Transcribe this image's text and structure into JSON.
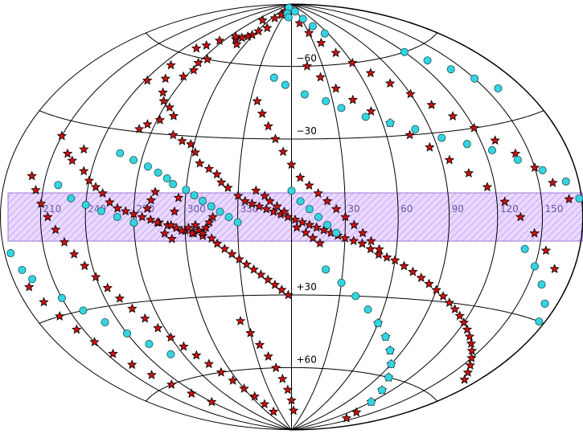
{
  "chart_data": {
    "type": "scatter",
    "projection": "aitoff-hammer all-sky, galactic coordinates",
    "grid": true,
    "lon_center": 0,
    "lat_lines": [
      -60,
      -30,
      30,
      60
    ],
    "lat_labels": [
      "+60",
      "+30",
      "−30",
      "−60"
    ],
    "lon_labels": [
      "210",
      "240",
      "270",
      "300",
      "330",
      "30",
      "60",
      "90",
      "120",
      "150"
    ],
    "band": {
      "lat_min": -10,
      "lat_max": 10,
      "color": "#cc99ff",
      "hatch": true
    },
    "colors": {
      "star_fill": "#cc1111",
      "circle_fill": "#33d6e0",
      "band": "#d7c2ff"
    },
    "series": [
      {
        "marker": "star",
        "points": [
          [
            -38,
            86
          ],
          [
            -40,
            84
          ],
          [
            -52,
            82
          ],
          [
            -75,
            80
          ],
          [
            -48,
            77
          ],
          [
            -58,
            75
          ],
          [
            -62,
            73
          ],
          [
            -66,
            72
          ],
          [
            -72,
            71
          ],
          [
            -70,
            68
          ],
          [
            -78,
            70
          ],
          [
            -82,
            71
          ],
          [
            -95,
            68
          ],
          [
            -102,
            65
          ],
          [
            -108,
            63
          ],
          [
            -85,
            60
          ],
          [
            -90,
            58
          ],
          [
            -88,
            55
          ],
          [
            -92,
            52
          ],
          [
            -105,
            50
          ],
          [
            -112,
            55
          ],
          [
            -118,
            48
          ],
          [
            -98,
            45
          ],
          [
            -93,
            42
          ],
          [
            -86,
            40
          ],
          [
            -80,
            37
          ],
          [
            -88,
            35
          ],
          [
            -95,
            33
          ],
          [
            -99,
            31
          ],
          [
            -75,
            30
          ],
          [
            -68,
            28
          ],
          [
            -62,
            27
          ],
          [
            -58,
            24
          ],
          [
            -54,
            20
          ],
          [
            -48,
            18
          ],
          [
            -43,
            16
          ],
          [
            -40,
            13
          ],
          [
            -36,
            11
          ],
          [
            -30,
            8
          ],
          [
            -26,
            6
          ],
          [
            -22,
            5
          ],
          [
            -18,
            4
          ],
          [
            -14,
            3
          ],
          [
            -10,
            2
          ],
          [
            -6,
            1
          ],
          [
            -2,
            0
          ],
          [
            2,
            -1
          ],
          [
            6,
            -2
          ],
          [
            10,
            -3
          ],
          [
            14,
            -4
          ],
          [
            18,
            -5
          ],
          [
            22,
            -6
          ],
          [
            26,
            -7
          ],
          [
            30,
            -8
          ],
          [
            35,
            -9
          ],
          [
            40,
            -10
          ],
          [
            45,
            -12
          ],
          [
            50,
            -14
          ],
          [
            55,
            -15
          ],
          [
            60,
            -16
          ],
          [
            66,
            -18
          ],
          [
            72,
            -20
          ],
          [
            78,
            -22
          ],
          [
            84,
            -24
          ],
          [
            90,
            -26
          ],
          [
            96,
            -28
          ],
          [
            102,
            -30
          ],
          [
            108,
            -32
          ],
          [
            114,
            -34
          ],
          [
            120,
            -36
          ],
          [
            126,
            -38
          ],
          [
            132,
            -40
          ],
          [
            138,
            -42
          ],
          [
            144,
            -44
          ],
          [
            150,
            -46
          ],
          [
            156,
            -48
          ],
          [
            162,
            -50
          ],
          [
            168,
            -52
          ],
          [
            -150,
            25
          ],
          [
            -140,
            20
          ],
          [
            -135,
            18
          ],
          [
            -130,
            22
          ],
          [
            -125,
            15
          ],
          [
            -120,
            12
          ],
          [
            -115,
            10
          ],
          [
            -110,
            8
          ],
          [
            -105,
            5
          ],
          [
            -100,
            3
          ],
          [
            -95,
            2
          ],
          [
            -90,
            1
          ],
          [
            -85,
            0
          ],
          [
            -80,
            -1
          ],
          [
            -75,
            -2
          ],
          [
            -70,
            -3
          ],
          [
            -65,
            -4
          ],
          [
            -60,
            -5
          ],
          [
            -55,
            -6
          ],
          [
            -50,
            -7
          ],
          [
            -45,
            -8
          ],
          [
            -42,
            -10
          ],
          [
            -38,
            -12
          ],
          [
            -34,
            -14
          ],
          [
            -30,
            -16
          ],
          [
            -26,
            -18
          ],
          [
            -22,
            -20
          ],
          [
            -18,
            -22
          ],
          [
            -14,
            -24
          ],
          [
            -10,
            -26
          ],
          [
            -6,
            -28
          ],
          [
            -2,
            -30
          ],
          [
            -160,
            12
          ],
          [
            -155,
            8
          ],
          [
            -150,
            4
          ],
          [
            -145,
            0
          ],
          [
            -140,
            -4
          ],
          [
            -135,
            -8
          ],
          [
            -130,
            -12
          ],
          [
            -125,
            -16
          ],
          [
            -120,
            -20
          ],
          [
            -115,
            -24
          ],
          [
            -110,
            -28
          ],
          [
            -105,
            -32
          ],
          [
            -100,
            -36
          ],
          [
            -95,
            -40
          ],
          [
            -90,
            -44
          ],
          [
            -85,
            -48
          ],
          [
            -80,
            -52
          ],
          [
            -75,
            -56
          ],
          [
            -70,
            -60
          ],
          [
            -65,
            -64
          ],
          [
            -60,
            -68
          ],
          [
            -55,
            -72
          ],
          [
            -50,
            -76
          ],
          [
            -45,
            -80
          ],
          [
            20,
            80
          ],
          [
            30,
            75
          ],
          [
            40,
            70
          ],
          [
            50,
            65
          ],
          [
            60,
            60
          ],
          [
            70,
            55
          ],
          [
            80,
            50
          ],
          [
            90,
            45
          ],
          [
            100,
            40
          ],
          [
            110,
            35
          ],
          [
            120,
            30
          ],
          [
            130,
            25
          ],
          [
            140,
            20
          ],
          [
            150,
            15
          ],
          [
            160,
            10
          ],
          [
            170,
            5
          ],
          [
            15,
            60
          ],
          [
            25,
            55
          ],
          [
            35,
            50
          ],
          [
            45,
            45
          ],
          [
            55,
            40
          ],
          [
            65,
            35
          ],
          [
            75,
            30
          ],
          [
            85,
            25
          ],
          [
            95,
            20
          ],
          [
            105,
            15
          ],
          [
            115,
            10
          ],
          [
            125,
            5
          ],
          [
            135,
            0
          ],
          [
            145,
            -5
          ],
          [
            155,
            -10
          ],
          [
            165,
            -15
          ],
          [
            -25,
            45
          ],
          [
            -20,
            40
          ],
          [
            -15,
            35
          ],
          [
            -10,
            30
          ],
          [
            -5,
            25
          ],
          [
            0,
            20
          ],
          [
            5,
            15
          ],
          [
            10,
            12
          ],
          [
            15,
            9
          ],
          [
            20,
            6
          ],
          [
            25,
            3
          ],
          [
            30,
            0
          ],
          [
            35,
            -3
          ],
          [
            40,
            -6
          ],
          [
            45,
            -9
          ],
          [
            50,
            -12
          ],
          [
            -170,
            -20
          ],
          [
            -165,
            -25
          ],
          [
            -160,
            -30
          ],
          [
            -155,
            -35
          ],
          [
            -150,
            -40
          ],
          [
            -145,
            -45
          ],
          [
            -140,
            -50
          ],
          [
            -135,
            -55
          ],
          [
            -130,
            -60
          ],
          [
            -125,
            -65
          ],
          [
            -120,
            -70
          ],
          [
            60,
            -40
          ],
          [
            70,
            -45
          ],
          [
            80,
            -50
          ],
          [
            90,
            -55
          ],
          [
            100,
            -60
          ],
          [
            110,
            -65
          ],
          [
            120,
            -70
          ],
          [
            130,
            -75
          ],
          [
            140,
            -78
          ],
          [
            -35,
            -40
          ],
          [
            -30,
            -45
          ],
          [
            -25,
            -50
          ],
          [
            -20,
            -55
          ],
          [
            -15,
            -60
          ],
          [
            -10,
            -65
          ],
          [
            -5,
            -70
          ],
          [
            0,
            -75
          ],
          [
            5,
            -80
          ],
          [
            -64,
            7
          ],
          [
            -66,
            2
          ],
          [
            -68,
            -3
          ],
          [
            -62,
            -5
          ],
          [
            -58,
            -4
          ],
          [
            -56,
            -6
          ],
          [
            -54,
            -3
          ],
          [
            -52,
            -5
          ],
          [
            -50,
            -6
          ],
          [
            -48,
            -4
          ],
          [
            -46,
            -2
          ],
          [
            -44,
            0
          ],
          [
            -78,
            9
          ],
          [
            -80,
            6
          ],
          [
            -82,
            3
          ],
          [
            -76,
            -2
          ],
          [
            -72,
            -6
          ],
          [
            -68,
            -8
          ],
          [
            -20,
            10
          ],
          [
            -15,
            8
          ],
          [
            -12,
            6
          ],
          [
            -8,
            4
          ],
          [
            -4,
            2
          ],
          [
            3,
            -4
          ],
          [
            8,
            -6
          ],
          [
            12,
            -8
          ],
          [
            16,
            -10
          ]
        ]
      },
      {
        "marker": "circle",
        "points": [
          [
            -30,
            88
          ],
          [
            -20,
            85
          ],
          [
            -10,
            83
          ],
          [
            20,
            86
          ],
          [
            35,
            82
          ],
          [
            45,
            78
          ],
          [
            55,
            74
          ],
          [
            -15,
            55
          ],
          [
            -5,
            52
          ],
          [
            10,
            48
          ],
          [
            25,
            45
          ],
          [
            35,
            42
          ],
          [
            50,
            38
          ],
          [
            65,
            35
          ],
          [
            80,
            32
          ],
          [
            95,
            28
          ],
          [
            110,
            25
          ],
          [
            125,
            22
          ],
          [
            140,
            18
          ],
          [
            155,
            14
          ],
          [
            170,
            10
          ],
          [
            178,
            5
          ],
          [
            -105,
            22
          ],
          [
            -95,
            20
          ],
          [
            -85,
            18
          ],
          [
            -78,
            16
          ],
          [
            -72,
            14
          ],
          [
            -68,
            12
          ],
          [
            -60,
            10
          ],
          [
            -55,
            8
          ],
          [
            -50,
            6
          ],
          [
            -45,
            4
          ],
          [
            -40,
            2
          ],
          [
            -35,
            0
          ],
          [
            -30,
            -2
          ],
          [
            -140,
            10
          ],
          [
            -130,
            6
          ],
          [
            -120,
            4
          ],
          [
            -110,
            2
          ],
          [
            -100,
            0
          ],
          [
            -90,
            -2
          ],
          [
            -175,
            -10
          ],
          [
            -170,
            -15
          ],
          [
            -165,
            -18
          ],
          [
            -150,
            -25
          ],
          [
            -140,
            -30
          ],
          [
            -130,
            -35
          ],
          [
            -120,
            -40
          ],
          [
            -110,
            -45
          ],
          [
            -100,
            -50
          ],
          [
            20,
            -20
          ],
          [
            30,
            -25
          ],
          [
            40,
            -30
          ],
          [
            50,
            -35
          ],
          [
            60,
            -40
          ],
          [
            70,
            -45
          ],
          [
            80,
            -50
          ],
          [
            90,
            -55
          ],
          [
            100,
            -60
          ],
          [
            110,
            -65
          ],
          [
            120,
            -70
          ],
          [
            0,
            10
          ],
          [
            5,
            6
          ],
          [
            10,
            3
          ],
          [
            15,
            0
          ],
          [
            20,
            -3
          ],
          [
            25,
            -6
          ],
          [
            120,
            60
          ],
          [
            130,
            55
          ],
          [
            140,
            50
          ],
          [
            150,
            45
          ],
          [
            160,
            40
          ],
          [
            140,
            -10
          ],
          [
            150,
            -15
          ],
          [
            160,
            -20
          ],
          [
            170,
            -25
          ],
          [
            175,
            -30
          ]
        ]
      }
    ]
  }
}
